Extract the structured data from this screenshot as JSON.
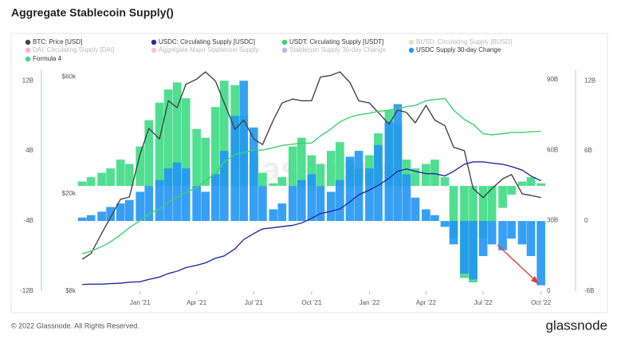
{
  "title": "Aggregate Stablecoin Supply()",
  "footer": "© 2022 Glassnode. All Rights Reserved.",
  "brand": "glassnode",
  "chart_data": {
    "type": "combo",
    "watermark": "glassnode",
    "x": [
      "2020-10-01",
      "2020-10-15",
      "2020-11-01",
      "2020-11-15",
      "2020-12-01",
      "2020-12-15",
      "2021-01-01",
      "2021-01-15",
      "2021-02-01",
      "2021-02-15",
      "2021-03-01",
      "2021-03-15",
      "2021-04-01",
      "2021-04-15",
      "2021-05-01",
      "2021-05-15",
      "2021-06-01",
      "2021-06-15",
      "2021-07-01",
      "2021-07-15",
      "2021-08-01",
      "2021-08-15",
      "2021-09-01",
      "2021-09-15",
      "2021-10-01",
      "2021-10-15",
      "2021-11-01",
      "2021-11-15",
      "2021-12-01",
      "2021-12-15",
      "2022-01-01",
      "2022-01-15",
      "2022-02-01",
      "2022-02-15",
      "2022-03-01",
      "2022-03-15",
      "2022-04-01",
      "2022-04-15",
      "2022-05-01",
      "2022-05-15",
      "2022-06-01",
      "2022-06-15",
      "2022-07-01",
      "2022-07-15",
      "2022-08-01",
      "2022-08-15",
      "2022-09-01",
      "2022-09-15",
      "2022-10-01"
    ],
    "xlim": [
      "2020-09-27",
      "2022-10-04"
    ],
    "xticks": [
      {
        "value": "2021-01-01",
        "label": "Jan '21"
      },
      {
        "value": "2021-04-01",
        "label": "Apr '21"
      },
      {
        "value": "2021-07-01",
        "label": "Jul '21"
      },
      {
        "value": "2021-10-01",
        "label": "Oct '21"
      },
      {
        "value": "2022-01-01",
        "label": "Jan '22"
      },
      {
        "value": "2022-04-01",
        "label": "Apr '22"
      },
      {
        "value": "2022-07-01",
        "label": "Jul '22"
      },
      {
        "value": "2022-10-01",
        "label": "Oct '22"
      }
    ],
    "yscale": "log",
    "ylim": [
      8000,
      64000
    ],
    "yticks": [
      {
        "value": 60000,
        "label": "$60k"
      },
      {
        "value": 20000,
        "label": "$20k"
      },
      {
        "value": 8000,
        "label": "$8k"
      }
    ],
    "y2lim": [
      0,
      94
    ],
    "y2ticks": [
      {
        "value": 90,
        "label": "90B"
      },
      {
        "value": 60,
        "label": "60B"
      },
      {
        "value": 30,
        "label": "30B"
      },
      0
    ],
    "y3lim": [
      -12,
      13.2
    ],
    "y3ticks": [
      {
        "value": 12,
        "label": "12B"
      },
      {
        "value": 4,
        "label": "4B"
      },
      {
        "value": -4,
        "label": "-4B"
      },
      {
        "value": -12,
        "label": "-12B"
      }
    ],
    "y4lim": [
      -6,
      12.9
    ],
    "y4ticks": [
      {
        "value": 12,
        "label": "12B"
      },
      {
        "value": 6,
        "label": "6B"
      },
      0,
      {
        "value": -6,
        "label": "-6B"
      }
    ],
    "series": [
      {
        "name": "Formula 4",
        "color": "#3ddc84",
        "kind": "bar",
        "axis": "y3",
        "values": [
          0.5,
          1.0,
          1.5,
          2.0,
          3.0,
          2.5,
          4.5,
          7.5,
          9.5,
          11.0,
          11.8,
          10.0,
          6.5,
          5.5,
          9.0,
          12.0,
          11.5,
          8.0,
          4.0,
          1.5,
          0.3,
          1.0,
          4.5,
          5.5,
          3.5,
          2.5,
          4.0,
          5.0,
          3.0,
          2.0,
          3.5,
          6.0,
          8.6,
          7.0,
          3.0,
          2.0,
          2.5,
          3.0,
          1.0,
          -6.0,
          -10.5,
          -11.0,
          -6.0,
          -4.0,
          -2.5,
          -1.0,
          0.5,
          1.0,
          0.3
        ]
      },
      {
        "name": "USDC Supply 30-day Change",
        "color": "#2196f3",
        "kind": "bar",
        "axis": "y4",
        "values": [
          0.3,
          0.5,
          0.8,
          1.2,
          1.5,
          1.8,
          2.5,
          3.0,
          3.5,
          4.5,
          5.0,
          4.5,
          3.0,
          2.5,
          4.0,
          6.0,
          9.0,
          12.0,
          8.0,
          3.0,
          1.0,
          1.5,
          3.0,
          3.5,
          4.0,
          3.0,
          2.5,
          3.5,
          5.5,
          6.0,
          4.5,
          6.5,
          8.5,
          10.0,
          4.0,
          2.0,
          1.0,
          0.5,
          -0.5,
          -2.0,
          -4.5,
          -5.0,
          -3.0,
          -2.0,
          -2.5,
          -1.5,
          -2.0,
          -3.0,
          -5.5
        ]
      },
      {
        "name": "BTC: Price [USD]",
        "color": "#444444",
        "kind": "line",
        "axis": "y",
        "values": [
          10800,
          11400,
          13800,
          16000,
          19000,
          19400,
          29000,
          37000,
          33500,
          48000,
          45000,
          56000,
          58800,
          63000,
          57800,
          47000,
          36700,
          40000,
          33500,
          31800,
          40000,
          47000,
          48800,
          48000,
          48000,
          60000,
          61000,
          63000,
          57000,
          48000,
          47000,
          43000,
          38500,
          44000,
          43000,
          39000,
          46000,
          40000,
          38000,
          31000,
          30000,
          21000,
          19300,
          21000,
          23000,
          24000,
          20000,
          19700,
          19300
        ]
      },
      {
        "name": "USDC: Circulating Supply [USDC]",
        "color": "#1f2fa0",
        "kind": "line",
        "axis": "y2",
        "values": [
          2.8,
          3.0,
          3.0,
          3.2,
          3.4,
          3.8,
          4.0,
          5.0,
          6.0,
          7.5,
          8.5,
          10,
          11,
          12,
          14,
          15,
          18,
          22,
          24.5,
          26.5,
          27,
          27.5,
          28,
          29,
          31,
          33,
          34,
          35,
          38,
          41,
          43,
          45,
          48,
          51,
          52,
          51,
          50,
          50,
          49,
          51,
          54,
          55,
          55,
          54.5,
          54,
          53,
          51.5,
          49,
          47
        ]
      },
      {
        "name": "USDT: Circulating Supply [USDT]",
        "color": "#3bd16f",
        "kind": "line",
        "axis": "y2",
        "values": [
          16,
          17,
          19,
          21,
          24,
          27,
          30,
          33,
          35,
          38,
          40,
          42,
          44,
          47,
          50,
          55,
          58,
          59,
          60,
          60,
          61,
          62,
          62.5,
          63,
          63,
          66,
          69,
          72,
          74,
          75,
          75.7,
          76.5,
          77,
          77.5,
          78.5,
          79,
          81,
          81.5,
          82,
          77,
          73,
          71,
          67,
          66.5,
          67,
          67.5,
          67.5,
          67.8,
          68
        ]
      }
    ],
    "hidden_series": [
      {
        "name": "BUSD: Circulating Supply [BUSD]",
        "color": "#f7931a"
      },
      {
        "name": "DAI: Circulating Supply [DAI]",
        "color": "#e91e8c"
      },
      {
        "name": "Aggregate Major Stablecoin Supply",
        "color": "#f05454"
      },
      {
        "name": "Stablecoin Supply 30-day Change",
        "color": "#2b45c4"
      }
    ]
  }
}
